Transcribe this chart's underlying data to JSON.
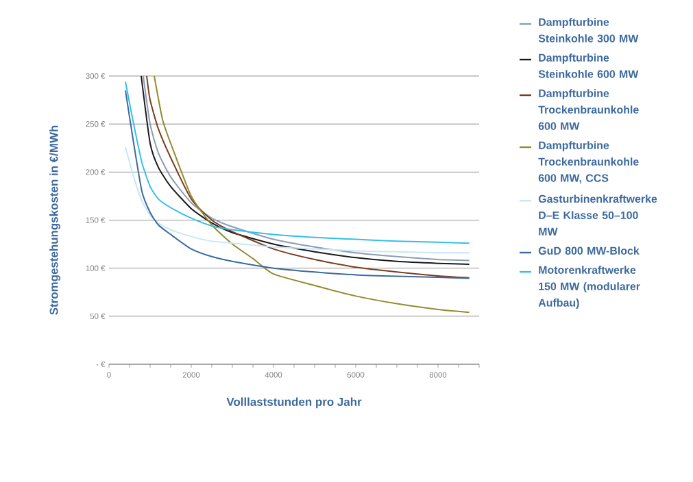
{
  "chart_data": {
    "type": "line",
    "xlabel": "Volllaststunden pro Jahr",
    "ylabel": "Stromgestehungskosten in €/MWh",
    "xlim": [
      0,
      9000
    ],
    "xticks": [
      0,
      {
        "value": 500,
        "label": null
      },
      {
        "value": 1000,
        "label": null
      },
      {
        "value": 1500,
        "label": null
      },
      2000,
      {
        "value": 2500,
        "label": null
      },
      {
        "value": 3000,
        "label": null
      },
      {
        "value": 3500,
        "label": null
      },
      4000,
      {
        "value": 4500,
        "label": null
      },
      {
        "value": 5000,
        "label": null
      },
      {
        "value": 5500,
        "label": null
      },
      6000,
      {
        "value": 6500,
        "label": null
      },
      {
        "value": 7000,
        "label": null
      },
      {
        "value": 7500,
        "label": null
      },
      8000,
      {
        "value": 8500,
        "label": null
      },
      {
        "value": 9000,
        "label": null
      }
    ],
    "ylim": [
      0,
      300
    ],
    "yticks": [
      {
        "value": 0,
        "label": "- €"
      },
      {
        "value": 50,
        "label": "50 €"
      },
      {
        "value": 100,
        "label": "100 €"
      },
      {
        "value": 150,
        "label": "150 €"
      },
      {
        "value": 200,
        "label": "200 €"
      },
      {
        "value": 250,
        "label": "250 €"
      },
      {
        "value": 300,
        "label": "300 €"
      }
    ],
    "grid": "y",
    "legend": "right",
    "marker": "none",
    "line_style": "solid",
    "series": [
      {
        "name": "Dampfturbine Steinkohle 300 MW",
        "color": "#8c9bb5",
        "x": [
          833,
          1000,
          1200,
          1500,
          2000,
          2500,
          3000,
          4000,
          5000,
          6000,
          7000,
          8000,
          8760
        ],
        "values": [
          300,
          250,
          220,
          195,
          168,
          152,
          143,
          130,
          122,
          116,
          112,
          109,
          108
        ]
      },
      {
        "name": "Dampfturbine Steinkohle 600 MW",
        "color": "#1a1a1a",
        "x": [
          783,
          1000,
          1200,
          1500,
          2000,
          2500,
          3000,
          4000,
          5000,
          6000,
          7000,
          8000,
          8760
        ],
        "values": [
          300,
          230,
          205,
          185,
          162,
          147,
          137,
          125,
          117,
          111,
          107,
          105,
          104
        ]
      },
      {
        "name": "Dampfturbine Trockenbraunkohle 600 MW",
        "color": "#7a3e1e",
        "x": [
          917,
          1000,
          1200,
          1500,
          2000,
          2500,
          3000,
          4000,
          5000,
          6000,
          7000,
          8000,
          8760
        ],
        "values": [
          300,
          275,
          245,
          215,
          172,
          150,
          138,
          120,
          109,
          101,
          96,
          92,
          90
        ]
      },
      {
        "name": "Dampfturbine Trockenbraunkohle 600 MW, CCS",
        "color": "#938a2e",
        "x": [
          1100,
          1300,
          1500,
          2000,
          2500,
          3000,
          3500,
          4000,
          5000,
          6000,
          7000,
          8000,
          8760
        ],
        "values": [
          300,
          255,
          230,
          175,
          145,
          125,
          110,
          94,
          82,
          71,
          63,
          57,
          54
        ]
      },
      {
        "name": "Gasturbinenkraftwerke D–E Klasse 50–100 MW",
        "color": "#c9e6f6",
        "x": [
          400,
          600,
          800,
          1000,
          1200,
          1500,
          2000,
          2500,
          3000,
          4000,
          5000,
          6000,
          7000,
          8000,
          8760
        ],
        "values": [
          226,
          195,
          170,
          155,
          147,
          140,
          133,
          128,
          126,
          122,
          120,
          118,
          117,
          116,
          116
        ]
      },
      {
        "name": "GuD 800 MW-Block",
        "color": "#3a6aa0",
        "x": [
          400,
          600,
          800,
          1000,
          1200,
          1500,
          2000,
          2500,
          3000,
          4000,
          5000,
          6000,
          7000,
          8000,
          8760
        ],
        "values": [
          285,
          230,
          180,
          158,
          145,
          135,
          120,
          112,
          107,
          100,
          96,
          93,
          91.5,
          90.5,
          89.5
        ]
      },
      {
        "name": "Motorenkraftwerke 150 MW (modularer Aufbau)",
        "color": "#34bfe8",
        "x": [
          400,
          600,
          800,
          1000,
          1200,
          1500,
          2000,
          2500,
          3000,
          4000,
          5000,
          6000,
          7000,
          8000,
          8760
        ],
        "values": [
          294,
          250,
          210,
          185,
          172,
          163,
          152,
          144,
          140,
          135,
          132,
          130,
          128,
          127,
          126
        ]
      }
    ]
  }
}
